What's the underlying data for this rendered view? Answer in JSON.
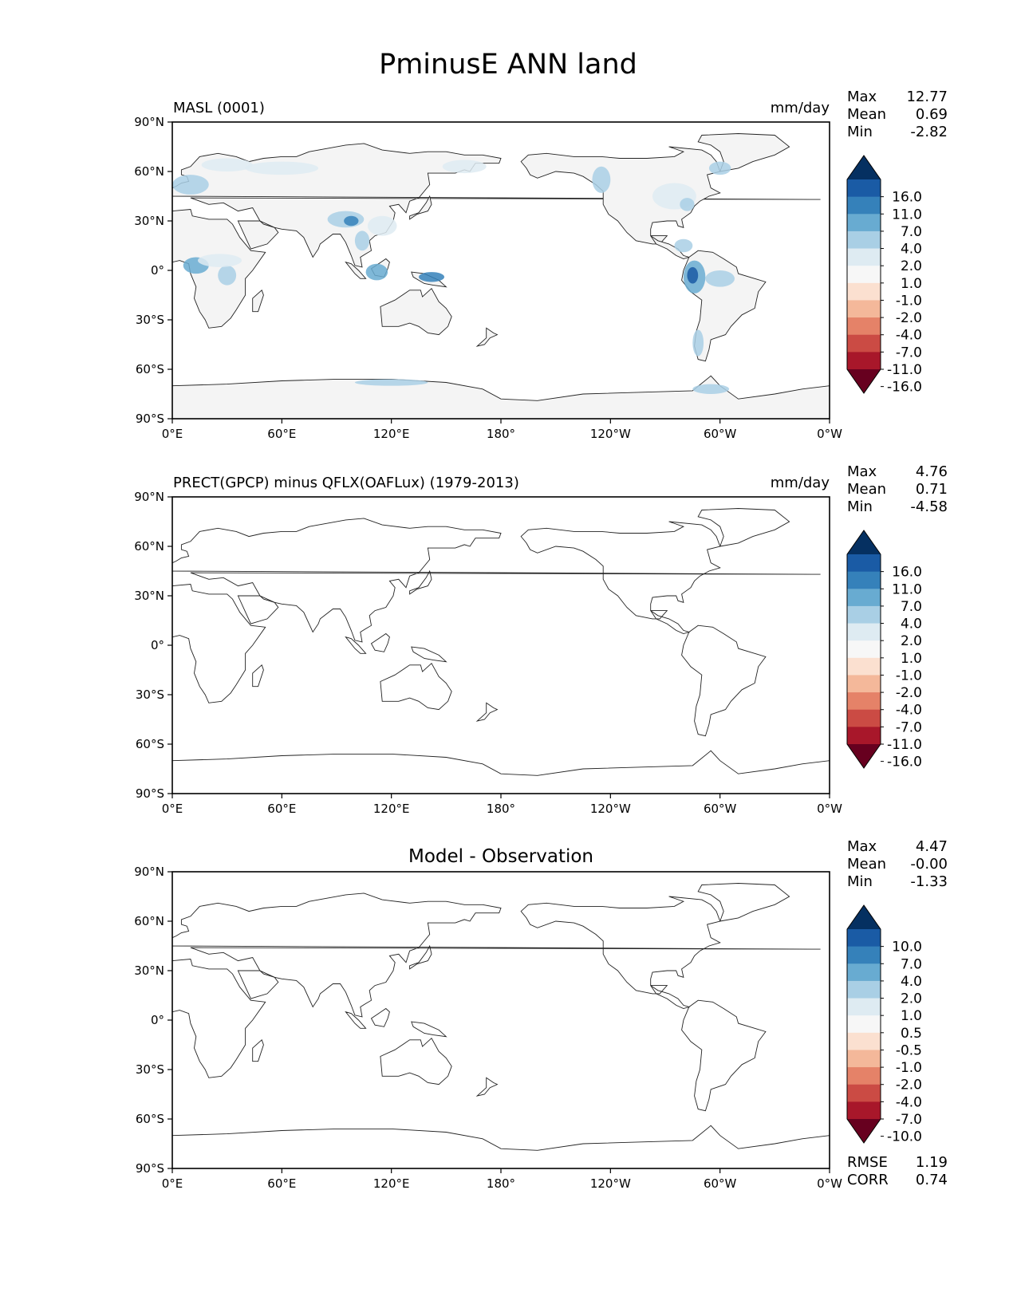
{
  "figure": {
    "title": "PminusE ANN land"
  },
  "chart_data": [
    {
      "type": "heatmap",
      "panel_title": "MASL (0001)",
      "title_align": "left",
      "units": "mm/day",
      "stats": [
        {
          "label": "Max",
          "value": "12.77"
        },
        {
          "label": "Mean",
          "value": "0.69"
        },
        {
          "label": "Min",
          "value": "-2.82"
        }
      ],
      "colorbar": {
        "colors": [
          "#67001f",
          "#a8172a",
          "#cb4b44",
          "#e58268",
          "#f4b89a",
          "#fbe0d0",
          "#f7f7f7",
          "#deebf2",
          "#a9cfe5",
          "#68abd1",
          "#3581ba",
          "#1a5ba5",
          "#053061"
        ],
        "labels": [
          "-16.0",
          "-11.0",
          "-7.0",
          "-4.0",
          "-2.0",
          "-1.0",
          "1.0",
          "2.0",
          "4.0",
          "7.0",
          "11.0",
          "16.0"
        ]
      },
      "x_ticks": [
        "0°E",
        "60°E",
        "120°E",
        "180°",
        "120°W",
        "60°W",
        "0°W"
      ],
      "y_ticks": [
        "90°N",
        "60°N",
        "30°N",
        "0°",
        "30°S",
        "60°S",
        "90°S"
      ],
      "xlim": [
        0,
        360
      ],
      "ylim": [
        -90,
        90
      ],
      "land_fill": true
    },
    {
      "type": "heatmap",
      "panel_title": "PRECT(GPCP) minus QFLX(OAFLux) (1979-2013)",
      "title_align": "left",
      "units": "mm/day",
      "stats": [
        {
          "label": "Max",
          "value": "4.76"
        },
        {
          "label": "Mean",
          "value": "0.71"
        },
        {
          "label": "Min",
          "value": "-4.58"
        }
      ],
      "colorbar": {
        "colors": [
          "#67001f",
          "#a8172a",
          "#cb4b44",
          "#e58268",
          "#f4b89a",
          "#fbe0d0",
          "#f7f7f7",
          "#deebf2",
          "#a9cfe5",
          "#68abd1",
          "#3581ba",
          "#1a5ba5",
          "#053061"
        ],
        "labels": [
          "-16.0",
          "-11.0",
          "-7.0",
          "-4.0",
          "-2.0",
          "-1.0",
          "1.0",
          "2.0",
          "4.0",
          "7.0",
          "11.0",
          "16.0"
        ]
      },
      "x_ticks": [
        "0°E",
        "60°E",
        "120°E",
        "180°",
        "120°W",
        "60°W",
        "0°W"
      ],
      "y_ticks": [
        "90°N",
        "60°N",
        "30°N",
        "0°",
        "30°S",
        "60°S",
        "90°S"
      ],
      "xlim": [
        0,
        360
      ],
      "ylim": [
        -90,
        90
      ],
      "land_fill": false
    },
    {
      "type": "heatmap",
      "panel_title": "Model - Observation",
      "title_align": "center",
      "units": "",
      "stats": [
        {
          "label": "Max",
          "value": "4.47"
        },
        {
          "label": "Mean",
          "value": "-0.00"
        },
        {
          "label": "Min",
          "value": "-1.33"
        }
      ],
      "colorbar": {
        "colors": [
          "#67001f",
          "#a8172a",
          "#cb4b44",
          "#e58268",
          "#f4b89a",
          "#fbe0d0",
          "#f7f7f7",
          "#deebf2",
          "#a9cfe5",
          "#68abd1",
          "#3581ba",
          "#1a5ba5",
          "#053061"
        ],
        "labels": [
          "-10.0",
          "-7.0",
          "-4.0",
          "-2.0",
          "-1.0",
          "-0.5",
          "0.5",
          "1.0",
          "2.0",
          "4.0",
          "7.0",
          "10.0"
        ]
      },
      "x_ticks": [
        "0°E",
        "60°E",
        "120°E",
        "180°",
        "120°W",
        "60°W",
        "0°W"
      ],
      "y_ticks": [
        "90°N",
        "60°N",
        "30°N",
        "0°",
        "30°S",
        "60°S",
        "90°S"
      ],
      "xlim": [
        0,
        360
      ],
      "ylim": [
        -90,
        90
      ],
      "land_fill": false,
      "footer_stats": [
        {
          "label": "RMSE",
          "value": "1.19"
        },
        {
          "label": "CORR",
          "value": "0.74"
        }
      ]
    }
  ]
}
